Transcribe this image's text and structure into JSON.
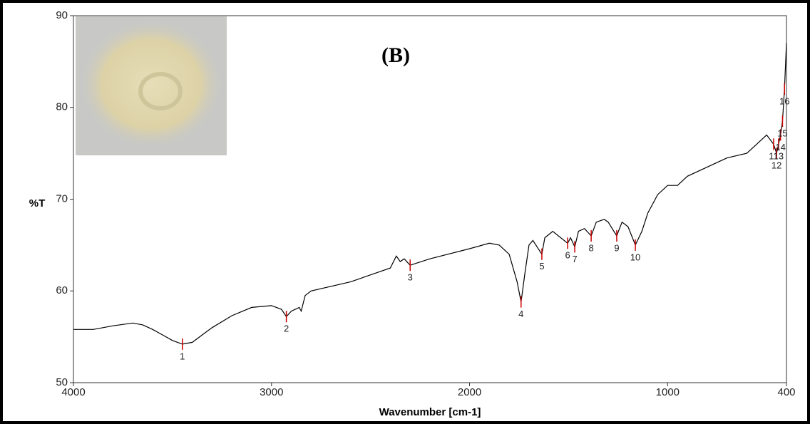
{
  "chart_data": {
    "type": "line",
    "annotation": "(B)",
    "xlabel": "Wavenumber [cm-1]",
    "ylabel": "%T",
    "color": "#000000",
    "marker_color": "#cc0000",
    "xlim": [
      4000,
      400
    ],
    "ylim": [
      50,
      90
    ],
    "xticks": [
      4000,
      3000,
      2000,
      1000,
      400
    ],
    "yticks": [
      50,
      60,
      70,
      80,
      90
    ],
    "x": [
      4000,
      3900,
      3800,
      3700,
      3650,
      3600,
      3550,
      3500,
      3450,
      3400,
      3350,
      3300,
      3200,
      3100,
      3000,
      2950,
      2925,
      2900,
      2860,
      2850,
      2830,
      2800,
      2600,
      2400,
      2370,
      2350,
      2330,
      2300,
      2200,
      2000,
      1900,
      1850,
      1800,
      1760,
      1740,
      1720,
      1700,
      1680,
      1635,
      1620,
      1580,
      1505,
      1490,
      1469,
      1450,
      1420,
      1386,
      1360,
      1320,
      1300,
      1257,
      1230,
      1200,
      1163,
      1130,
      1100,
      1050,
      1000,
      950,
      900,
      800,
      700,
      600,
      550,
      500,
      465,
      450,
      440,
      430,
      420,
      410,
      400
    ],
    "values": [
      55.8,
      55.8,
      56.2,
      56.5,
      56.3,
      55.8,
      55.2,
      54.6,
      54.2,
      54.4,
      55.2,
      56.0,
      57.3,
      58.2,
      58.4,
      58.0,
      57.2,
      57.8,
      58.2,
      57.8,
      59.5,
      60.0,
      61.0,
      62.5,
      63.8,
      63.2,
      63.5,
      62.8,
      63.5,
      64.6,
      65.2,
      65.0,
      64.0,
      61.0,
      58.8,
      62.0,
      65.0,
      65.5,
      64.0,
      65.8,
      66.5,
      65.2,
      65.8,
      64.8,
      66.5,
      66.8,
      66.0,
      67.5,
      67.8,
      67.5,
      66.0,
      67.5,
      67.0,
      65.0,
      66.5,
      68.5,
      70.5,
      71.5,
      71.5,
      72.5,
      73.5,
      74.5,
      75.0,
      76.0,
      77.0,
      76.0,
      75.0,
      76.0,
      77.0,
      78.5,
      82.0,
      87.0
    ],
    "peaks": [
      {
        "label": "1",
        "x": 3450,
        "y": 54.2
      },
      {
        "label": "2",
        "x": 2925,
        "y": 57.2
      },
      {
        "label": "3",
        "x": 2300,
        "y": 62.8
      },
      {
        "label": "4",
        "x": 1740,
        "y": 58.8
      },
      {
        "label": "5",
        "x": 1635,
        "y": 64.0
      },
      {
        "label": "6",
        "x": 1505,
        "y": 65.2
      },
      {
        "label": "7",
        "x": 1469,
        "y": 64.8
      },
      {
        "label": "8",
        "x": 1386,
        "y": 66.0
      },
      {
        "label": "9",
        "x": 1257,
        "y": 66.0
      },
      {
        "label": "10",
        "x": 1163,
        "y": 65.0
      },
      {
        "label": "11",
        "x": 465,
        "y": 76.0
      },
      {
        "label": "12",
        "x": 450,
        "y": 75.0
      },
      {
        "label": "13",
        "x": 440,
        "y": 76.0
      },
      {
        "label": "14",
        "x": 430,
        "y": 77.0
      },
      {
        "label": "15",
        "x": 420,
        "y": 78.5
      },
      {
        "label": "16",
        "x": 410,
        "y": 82.0
      }
    ]
  }
}
